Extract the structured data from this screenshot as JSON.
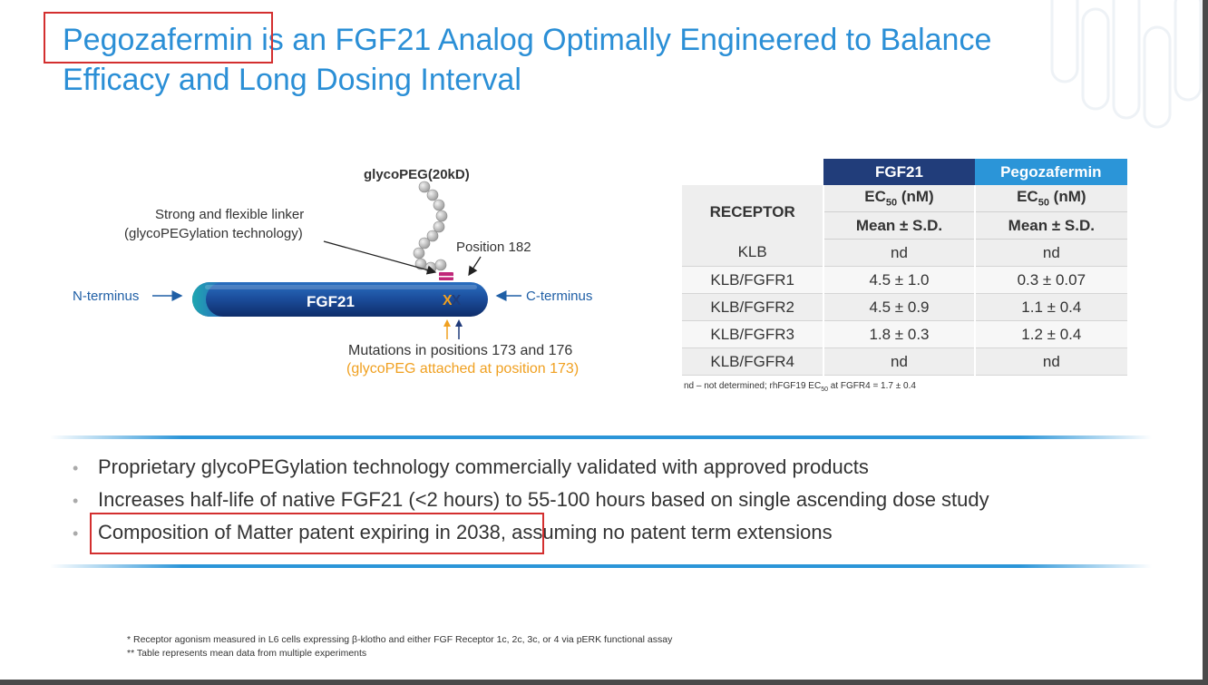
{
  "title": {
    "line1_highlight": "Pegozafermin",
    "line1_rest": " is an FGF21 Analog Optimally Engineered to Balance",
    "line2": "Efficacy and Long Dosing Interval"
  },
  "diagram": {
    "glyco_peg": "glycoPEG(20kD)",
    "linker_line1": "Strong and flexible linker",
    "linker_line2": "(glycoPEGylation technology)",
    "position_182": "Position 182",
    "n_terminus": "N-terminus",
    "c_terminus": "C-terminus",
    "protein": "FGF21",
    "mutation_marks": "XX",
    "mutations": "Mutations in positions 173 and 176",
    "glyco_attached": "(glycoPEG attached at position 173)"
  },
  "table": {
    "col_fgf21": "FGF21",
    "col_peg": "Pegozafermin",
    "receptor": "RECEPTOR",
    "ec50_prefix": "EC",
    "ec50_sub": "50",
    "ec50_suffix": " (nM)",
    "mean_sd": "Mean ± S.D.",
    "rows": [
      {
        "receptor": "KLB",
        "fgf21": "nd",
        "peg": "nd"
      },
      {
        "receptor": "KLB/FGFR1",
        "fgf21": "4.5 ± 1.0",
        "peg": "0.3 ± 0.07"
      },
      {
        "receptor": "KLB/FGFR2",
        "fgf21": "4.5 ± 0.9",
        "peg": "1.1 ± 0.4"
      },
      {
        "receptor": "KLB/FGFR3",
        "fgf21": "1.8 ± 0.3",
        "peg": "1.2 ± 0.4"
      },
      {
        "receptor": "KLB/FGFR4",
        "fgf21": "nd",
        "peg": "nd"
      }
    ],
    "note_a": "nd – not determined; rhFGF19 EC",
    "note_sub": "50",
    "note_b": " at FGFR4 = 1.7 ± 0.4"
  },
  "bullets": [
    {
      "text": "Proprietary glycoPEGylation technology commercially validated with approved products"
    },
    {
      "text": "Increases half-life of native FGF21 (<2 hours) to 55-100 hours based on single ascending dose study"
    },
    {
      "highlight": "Composition of Matter patent expiring in 2038",
      "rest": ", assuming no patent term extensions"
    }
  ],
  "bullet_symbol": "•",
  "footnotes": [
    "* Receptor agonism measured in L6 cells expressing β-klotho and either FGF Receptor 1c, 2c, 3c, or 4 via pERK functional assay",
    "** Table represents mean data from multiple experiments"
  ],
  "colors": {
    "title_blue": "#2b8fd6",
    "navy": "#213d7a",
    "light_blue": "#2b95d8",
    "highlight_red": "#d32f2f",
    "orange": "#f0a020"
  }
}
